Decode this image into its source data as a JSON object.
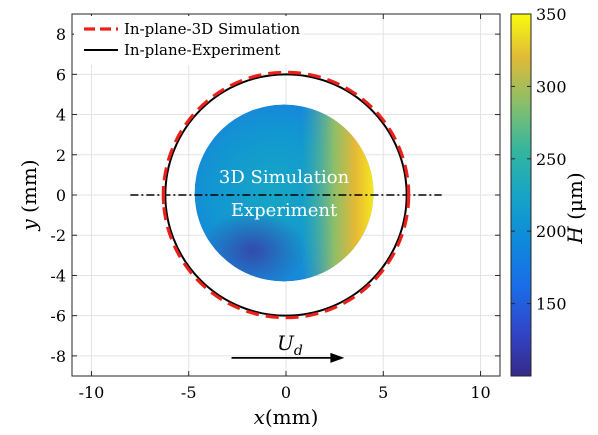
{
  "chart_data": {
    "type": "scatter",
    "xlabel": "x(mm)",
    "ylabel": "y (mm)",
    "xlim": [
      -11,
      11
    ],
    "ylim": [
      -9,
      9
    ],
    "x_ticks": [
      -10,
      -5,
      0,
      5,
      10
    ],
    "x_tick_labels": [
      "-10",
      "-5",
      "0",
      "5",
      "10"
    ],
    "y_ticks": [
      -8,
      -6,
      -4,
      -2,
      0,
      2,
      4,
      6,
      8
    ],
    "y_tick_labels": [
      "-8",
      "-6",
      "-4",
      "-2",
      "0",
      "2",
      "4",
      "6",
      "8"
    ],
    "grid": true,
    "legend": {
      "placement": "top-left",
      "entries": [
        {
          "label": "In-plane-3D Simulation",
          "color": "#e8211b",
          "style": "dashed"
        },
        {
          "label": "In-plane-Experiment",
          "color": "#000000",
          "style": "solid"
        }
      ]
    },
    "series": [
      {
        "name": "In-plane-3D Simulation",
        "shape": "circle",
        "center": [
          0,
          0
        ],
        "radius": 6.1,
        "color": "#e8211b"
      },
      {
        "name": "In-plane-Experiment",
        "shape": "circle",
        "center": [
          0,
          0
        ],
        "radius": 6.0,
        "color": "#000000"
      }
    ],
    "thickness_field": {
      "center": [
        -0.1,
        0.1
      ],
      "rx": 4.6,
      "ry": 4.4,
      "labels": [
        "3D Simulation",
        "Experiment"
      ]
    },
    "centerline": {
      "x_start": -8,
      "x_end": 8,
      "y": 0
    },
    "edge_markers": [
      -6.3,
      6.3
    ],
    "flow_arrow": {
      "label": "U",
      "subscript": "d",
      "x_start": -2.8,
      "x_end": 3,
      "y": -8.1
    },
    "colorbar": {
      "label": "H",
      "unit": "(μm)",
      "range": [
        100,
        350
      ],
      "ticks": [
        150,
        200,
        250,
        300,
        350
      ],
      "tick_labels": [
        "150",
        "200",
        "250",
        "300",
        "350"
      ],
      "colormap": "parula"
    }
  }
}
